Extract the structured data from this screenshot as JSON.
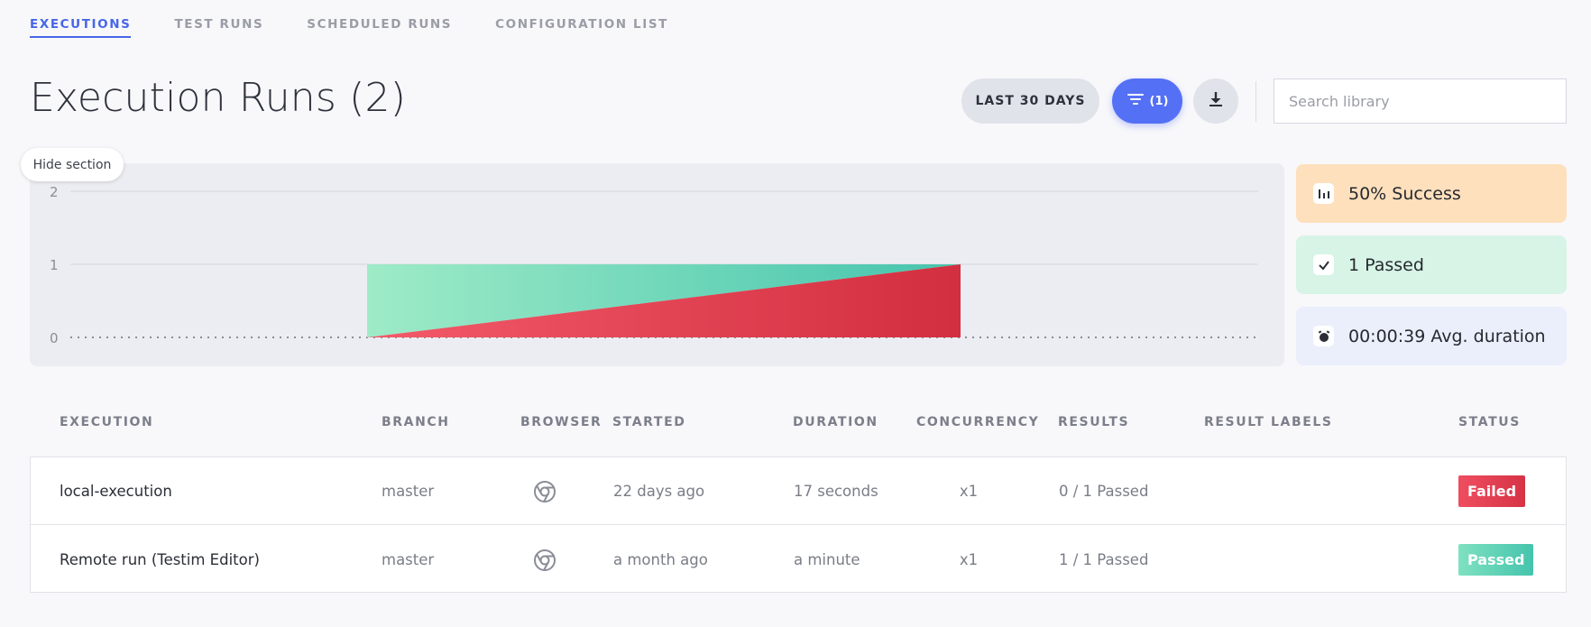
{
  "tabs": [
    {
      "label": "EXECUTIONS",
      "active": true
    },
    {
      "label": "TEST RUNS",
      "active": false
    },
    {
      "label": "SCHEDULED RUNS",
      "active": false
    },
    {
      "label": "CONFIGURATION LIST",
      "active": false
    }
  ],
  "page_title": "Execution Runs (2)",
  "toolbar": {
    "range_label": "LAST 30 DAYS",
    "filter_label": "(1)",
    "download_icon": "download-icon",
    "search_placeholder": "Search library",
    "search_value": ""
  },
  "chart": {
    "hide_label": "Hide section",
    "y_ticks": [
      "2",
      "1",
      "0"
    ]
  },
  "chart_data": {
    "type": "area",
    "title": "",
    "xlabel": "",
    "ylabel": "",
    "ylim": [
      0,
      2
    ],
    "y_ticks": [
      0,
      1,
      2
    ],
    "grid": true,
    "series": [
      {
        "name": "",
        "color": "#45c4ad",
        "segment": {
          "x": [
            0,
            1
          ],
          "y": [
            1,
            1
          ]
        }
      },
      {
        "name": "",
        "color": "#d63446",
        "segment": {
          "x": [
            0,
            1
          ],
          "y": [
            0,
            1
          ]
        }
      }
    ]
  },
  "stats": {
    "success": "50% Success",
    "passed": "1 Passed",
    "duration": "00:00:39 Avg. duration"
  },
  "table": {
    "headers": {
      "execution": "EXECUTION",
      "branch": "BRANCH",
      "browser": "BROWSER",
      "started": "STARTED",
      "duration": "DURATION",
      "concurrency": "CONCURRENCY",
      "results": "RESULTS",
      "result_labels": "RESULT LABELS",
      "status": "STATUS"
    },
    "rows": [
      {
        "execution": "local-execution",
        "branch": "master",
        "browser": "chrome-icon",
        "started": "22 days ago",
        "duration": "17 seconds",
        "concurrency": "x1",
        "results": "0 / 1 Passed",
        "result_labels": "",
        "status": "Failed"
      },
      {
        "execution": "Remote run (Testim Editor)",
        "branch": "master",
        "browser": "chrome-icon",
        "started": "a month ago",
        "duration": "a minute",
        "concurrency": "x1",
        "results": "1 / 1 Passed",
        "result_labels": "",
        "status": "Passed"
      }
    ]
  },
  "colors": {
    "accent": "#4766e8",
    "filter_button": "#5470f5",
    "failed": "#d63446",
    "passed": "#45c4ad",
    "success_card": "#fee0bd",
    "passed_card": "#d7f4e6",
    "duration_card": "#ebeffb"
  }
}
